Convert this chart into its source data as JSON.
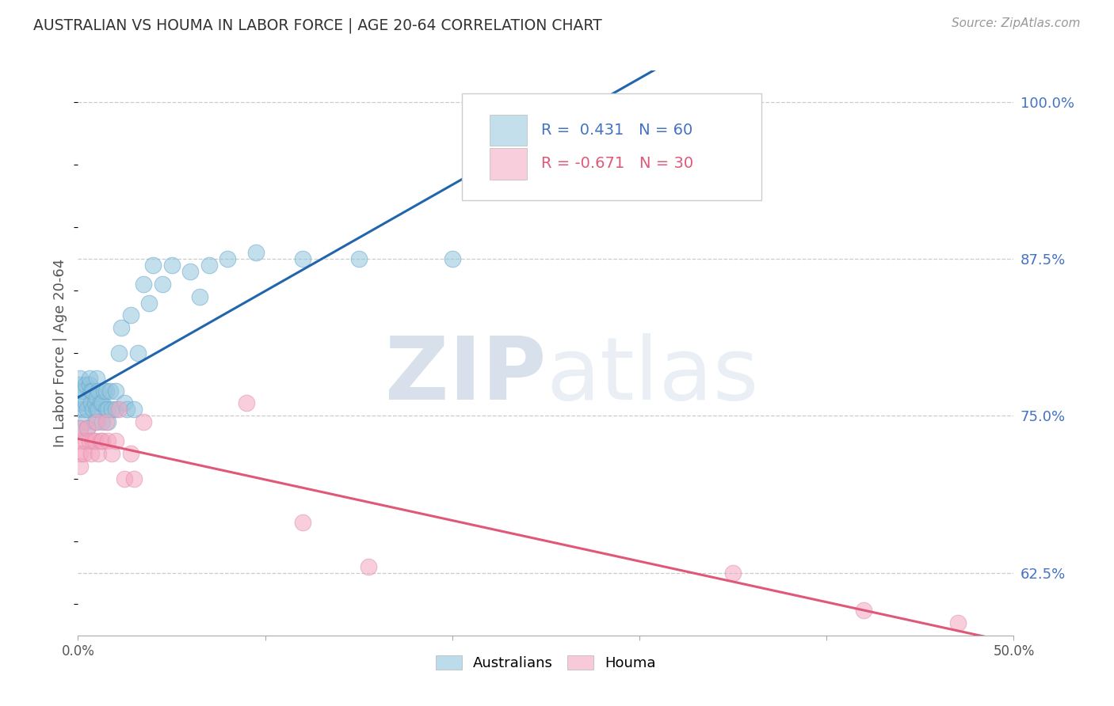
{
  "title": "AUSTRALIAN VS HOUMA IN LABOR FORCE | AGE 20-64 CORRELATION CHART",
  "source": "Source: ZipAtlas.com",
  "ylabel": "In Labor Force | Age 20-64",
  "xlim": [
    0.0,
    0.5
  ],
  "ylim": [
    0.575,
    1.025
  ],
  "xticks": [
    0.0,
    0.1,
    0.2,
    0.3,
    0.4,
    0.5
  ],
  "xticklabels": [
    "0.0%",
    "",
    "",
    "",
    "",
    "50.0%"
  ],
  "yticks": [
    0.625,
    0.75,
    0.875,
    1.0
  ],
  "yticklabels": [
    "62.5%",
    "75.0%",
    "87.5%",
    "100.0%"
  ],
  "watermark_zip": "ZIP",
  "watermark_atlas": "atlas",
  "legend_labels": [
    "Australians",
    "Houma"
  ],
  "blue_color": "#92c5de",
  "pink_color": "#f4a6c0",
  "blue_line_color": "#2166ac",
  "pink_line_color": "#e05878",
  "R_blue": 0.431,
  "N_blue": 60,
  "R_pink": -0.671,
  "N_pink": 30,
  "blue_x": [
    0.001,
    0.001,
    0.001,
    0.001,
    0.001,
    0.002,
    0.003,
    0.003,
    0.004,
    0.004,
    0.004,
    0.005,
    0.005,
    0.006,
    0.006,
    0.007,
    0.007,
    0.008,
    0.008,
    0.009,
    0.009,
    0.01,
    0.01,
    0.01,
    0.011,
    0.011,
    0.012,
    0.013,
    0.013,
    0.014,
    0.015,
    0.015,
    0.016,
    0.016,
    0.017,
    0.018,
    0.02,
    0.02,
    0.022,
    0.023,
    0.025,
    0.026,
    0.028,
    0.03,
    0.032,
    0.035,
    0.038,
    0.04,
    0.045,
    0.05,
    0.06,
    0.065,
    0.07,
    0.08,
    0.095,
    0.12,
    0.15,
    0.2,
    0.25,
    0.33
  ],
  "blue_y": [
    0.74,
    0.755,
    0.76,
    0.775,
    0.78,
    0.77,
    0.755,
    0.77,
    0.745,
    0.76,
    0.775,
    0.74,
    0.755,
    0.775,
    0.78,
    0.76,
    0.77,
    0.755,
    0.77,
    0.745,
    0.76,
    0.755,
    0.765,
    0.78,
    0.77,
    0.755,
    0.76,
    0.745,
    0.76,
    0.77,
    0.755,
    0.77,
    0.745,
    0.755,
    0.77,
    0.755,
    0.755,
    0.77,
    0.8,
    0.82,
    0.76,
    0.755,
    0.83,
    0.755,
    0.8,
    0.855,
    0.84,
    0.87,
    0.855,
    0.87,
    0.865,
    0.845,
    0.87,
    0.875,
    0.88,
    0.875,
    0.875,
    0.875,
    1.0,
    1.0
  ],
  "pink_x": [
    0.001,
    0.001,
    0.001,
    0.002,
    0.003,
    0.004,
    0.005,
    0.006,
    0.007,
    0.008,
    0.009,
    0.01,
    0.011,
    0.012,
    0.013,
    0.015,
    0.016,
    0.018,
    0.02,
    0.022,
    0.025,
    0.028,
    0.03,
    0.035,
    0.09,
    0.12,
    0.155,
    0.35,
    0.42,
    0.47
  ],
  "pink_y": [
    0.71,
    0.72,
    0.74,
    0.73,
    0.72,
    0.73,
    0.74,
    0.73,
    0.72,
    0.73,
    0.73,
    0.745,
    0.72,
    0.73,
    0.73,
    0.745,
    0.73,
    0.72,
    0.73,
    0.755,
    0.7,
    0.72,
    0.7,
    0.745,
    0.76,
    0.665,
    0.63,
    0.625,
    0.595,
    0.585
  ]
}
